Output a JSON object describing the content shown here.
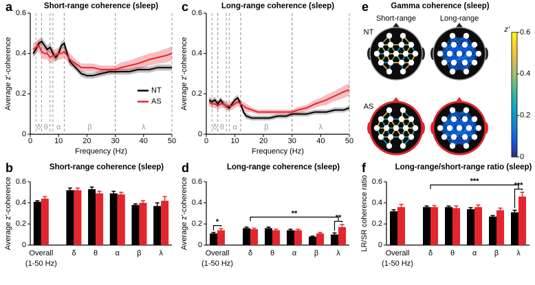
{
  "chart_data": [
    {
      "type": "line",
      "panel": "a",
      "title": "Short-range coherence (sleep)",
      "xlabel": "Frequency (Hz)",
      "ylabel": "Average z'-coherence",
      "x": [
        1,
        2,
        3,
        4,
        5,
        6,
        7,
        8,
        9,
        10,
        11,
        12,
        13,
        14,
        16,
        18,
        20,
        22,
        25,
        28,
        30,
        32,
        35,
        38,
        40,
        42,
        45,
        48,
        50
      ],
      "xlim": [
        0,
        50
      ],
      "xticks": [
        0,
        10,
        20,
        30,
        40,
        50
      ],
      "ylim": [
        0,
        0.6
      ],
      "yticks": [
        0,
        0.2,
        0.4,
        0.6
      ],
      "legend": "right",
      "bands": [
        {
          "label": "δ",
          "range": [
            2,
            4
          ]
        },
        {
          "label": "θ",
          "range": [
            4,
            7
          ]
        },
        {
          "label": "α",
          "range": [
            8,
            12
          ]
        },
        {
          "label": "β",
          "range": [
            12,
            30
          ]
        },
        {
          "label": "λ",
          "range": [
            30,
            50
          ]
        }
      ],
      "series": [
        {
          "name": "NT",
          "color": "#000000",
          "values": [
            0.4,
            0.42,
            0.45,
            0.46,
            0.44,
            0.42,
            0.43,
            0.4,
            0.38,
            0.4,
            0.44,
            0.45,
            0.4,
            0.36,
            0.33,
            0.3,
            0.29,
            0.29,
            0.3,
            0.31,
            0.31,
            0.31,
            0.31,
            0.32,
            0.32,
            0.32,
            0.33,
            0.33,
            0.33
          ],
          "errors": [
            0.02,
            0.02,
            0.02,
            0.02,
            0.02,
            0.02,
            0.02,
            0.02,
            0.02,
            0.02,
            0.02,
            0.02,
            0.02,
            0.02,
            0.015,
            0.015,
            0.015,
            0.015,
            0.015,
            0.015,
            0.015,
            0.015,
            0.015,
            0.015,
            0.015,
            0.015,
            0.015,
            0.015,
            0.015
          ]
        },
        {
          "name": "AS",
          "color": "#e3262b",
          "values": [
            0.42,
            0.43,
            0.44,
            0.41,
            0.4,
            0.4,
            0.38,
            0.39,
            0.39,
            0.4,
            0.4,
            0.41,
            0.39,
            0.37,
            0.35,
            0.33,
            0.33,
            0.33,
            0.32,
            0.32,
            0.32,
            0.33,
            0.34,
            0.35,
            0.36,
            0.37,
            0.38,
            0.39,
            0.4
          ],
          "errors": [
            0.03,
            0.03,
            0.03,
            0.03,
            0.03,
            0.03,
            0.03,
            0.03,
            0.03,
            0.03,
            0.03,
            0.03,
            0.03,
            0.03,
            0.02,
            0.02,
            0.02,
            0.02,
            0.02,
            0.02,
            0.02,
            0.025,
            0.025,
            0.03,
            0.03,
            0.03,
            0.03,
            0.035,
            0.035
          ]
        }
      ]
    },
    {
      "type": "bar",
      "panel": "b",
      "title": "Short-range coherence (sleep)",
      "ylabel": "Average z'-coherence",
      "categories": [
        "Overall",
        "δ",
        "θ",
        "α",
        "β",
        "λ"
      ],
      "x_note": "(1-50 Hz)",
      "ylim": [
        0,
        0.6
      ],
      "yticks": [
        0,
        0.2,
        0.4,
        0.6
      ],
      "series": [
        {
          "name": "NT",
          "color": "#000000",
          "values": [
            0.41,
            0.52,
            0.53,
            0.49,
            0.38,
            0.37
          ],
          "errors": [
            0.01,
            0.02,
            0.02,
            0.02,
            0.01,
            0.03
          ]
        },
        {
          "name": "AS",
          "color": "#e3262b",
          "values": [
            0.44,
            0.52,
            0.49,
            0.48,
            0.4,
            0.42
          ],
          "errors": [
            0.02,
            0.02,
            0.02,
            0.02,
            0.02,
            0.04
          ]
        }
      ],
      "annotations": []
    },
    {
      "type": "line",
      "panel": "c",
      "title": "Long-range coherence (sleep)",
      "xlabel": "Frequency (Hz)",
      "ylabel": "Average z'-coherence",
      "x": [
        1,
        2,
        3,
        4,
        5,
        6,
        7,
        8,
        9,
        10,
        11,
        12,
        13,
        14,
        16,
        18,
        20,
        22,
        25,
        28,
        30,
        32,
        35,
        38,
        40,
        42,
        45,
        48,
        50
      ],
      "xlim": [
        0,
        50
      ],
      "xticks": [
        0,
        10,
        20,
        30,
        40,
        50
      ],
      "ylim": [
        0,
        0.6
      ],
      "yticks": [
        0,
        0.2,
        0.4,
        0.6
      ],
      "bands": [
        {
          "label": "δ",
          "range": [
            2,
            4
          ]
        },
        {
          "label": "θ",
          "range": [
            4,
            7
          ]
        },
        {
          "label": "α",
          "range": [
            8,
            12
          ]
        },
        {
          "label": "β",
          "range": [
            12,
            30
          ]
        },
        {
          "label": "λ",
          "range": [
            30,
            50
          ]
        }
      ],
      "series": [
        {
          "name": "NT",
          "color": "#000000",
          "values": [
            0.17,
            0.16,
            0.17,
            0.15,
            0.17,
            0.15,
            0.14,
            0.13,
            0.15,
            0.17,
            0.18,
            0.15,
            0.11,
            0.09,
            0.08,
            0.08,
            0.08,
            0.08,
            0.09,
            0.09,
            0.1,
            0.1,
            0.1,
            0.11,
            0.11,
            0.11,
            0.12,
            0.12,
            0.13
          ],
          "errors": [
            0.015,
            0.015,
            0.015,
            0.015,
            0.015,
            0.015,
            0.015,
            0.015,
            0.015,
            0.015,
            0.015,
            0.015,
            0.015,
            0.015,
            0.012,
            0.012,
            0.012,
            0.012,
            0.012,
            0.012,
            0.012,
            0.012,
            0.012,
            0.012,
            0.012,
            0.012,
            0.012,
            0.012,
            0.012
          ]
        },
        {
          "name": "AS",
          "color": "#e3262b",
          "values": [
            0.16,
            0.15,
            0.15,
            0.14,
            0.15,
            0.15,
            0.14,
            0.14,
            0.14,
            0.15,
            0.16,
            0.15,
            0.14,
            0.13,
            0.12,
            0.11,
            0.11,
            0.11,
            0.11,
            0.11,
            0.11,
            0.12,
            0.13,
            0.15,
            0.16,
            0.17,
            0.19,
            0.21,
            0.22
          ],
          "errors": [
            0.02,
            0.02,
            0.02,
            0.02,
            0.02,
            0.02,
            0.02,
            0.02,
            0.02,
            0.02,
            0.02,
            0.02,
            0.02,
            0.02,
            0.012,
            0.012,
            0.012,
            0.012,
            0.012,
            0.012,
            0.012,
            0.015,
            0.015,
            0.02,
            0.02,
            0.025,
            0.025,
            0.03,
            0.03
          ]
        }
      ]
    },
    {
      "type": "bar",
      "panel": "d",
      "title": "Long-range coherence (sleep)",
      "ylabel": "Average z'-coherence",
      "categories": [
        "Overall",
        "δ",
        "θ",
        "α",
        "β",
        "λ"
      ],
      "x_note": "(1-50 Hz)",
      "ylim": [
        0,
        0.6
      ],
      "yticks": [
        0,
        0.2,
        0.4,
        0.6
      ],
      "series": [
        {
          "name": "NT",
          "color": "#000000",
          "values": [
            0.11,
            0.16,
            0.16,
            0.14,
            0.08,
            0.1
          ],
          "errors": [
            0.01,
            0.01,
            0.01,
            0.01,
            0.005,
            0.015
          ]
        },
        {
          "name": "AS",
          "color": "#e3262b",
          "values": [
            0.14,
            0.15,
            0.14,
            0.14,
            0.11,
            0.17
          ],
          "errors": [
            0.015,
            0.01,
            0.01,
            0.01,
            0.01,
            0.025
          ]
        }
      ],
      "annotations": [
        {
          "text": "*",
          "categories": [
            "Overall",
            "Overall"
          ]
        },
        {
          "text": "**",
          "categories": [
            "δ",
            "λ"
          ]
        },
        {
          "text": "**",
          "categories": [
            "λ",
            "λ"
          ]
        }
      ]
    },
    {
      "type": "diagram",
      "panel": "e",
      "title": "Gamma coherence (sleep)",
      "columns": [
        "Short-range",
        "Long-range"
      ],
      "rows": [
        "NT",
        "AS"
      ],
      "colorbar_label": "z'",
      "clim": [
        0,
        0.6
      ],
      "cticks": [
        0,
        0.2,
        0.4,
        0.6
      ],
      "colormap": [
        "#352a87",
        "#0f5cdd",
        "#1481d6",
        "#06a4ca",
        "#2eb7a4",
        "#87bf77",
        "#d1bb59",
        "#fec832",
        "#f9fb0e"
      ]
    },
    {
      "type": "bar",
      "panel": "f",
      "title": "Long-range/short-range ratio (sleep)",
      "ylabel": "LR/SR coherence ratio",
      "categories": [
        "Overall",
        "δ",
        "θ",
        "α",
        "β",
        "λ"
      ],
      "x_note": "(1-50 Hz)",
      "ylim": [
        0,
        0.6
      ],
      "yticks": [
        0,
        0.2,
        0.4,
        0.6
      ],
      "series": [
        {
          "name": "NT",
          "color": "#000000",
          "values": [
            0.32,
            0.36,
            0.36,
            0.34,
            0.27,
            0.31
          ],
          "errors": [
            0.015,
            0.01,
            0.01,
            0.015,
            0.01,
            0.02
          ]
        },
        {
          "name": "AS",
          "color": "#e3262b",
          "values": [
            0.36,
            0.36,
            0.35,
            0.36,
            0.33,
            0.46
          ],
          "errors": [
            0.025,
            0.015,
            0.02,
            0.02,
            0.02,
            0.04
          ]
        }
      ],
      "annotations": [
        {
          "text": "***",
          "categories": [
            "δ",
            "λ"
          ]
        },
        {
          "text": "***",
          "categories": [
            "λ",
            "λ"
          ]
        }
      ]
    }
  ]
}
